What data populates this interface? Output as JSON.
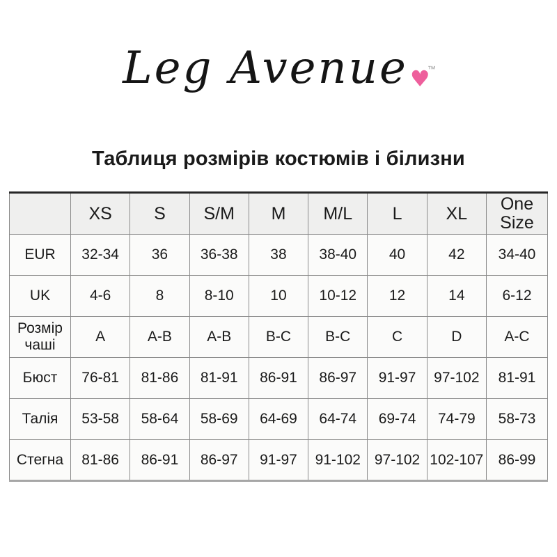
{
  "logo": {
    "text": "Leg Avenue",
    "trademark": "™",
    "heart": "♥"
  },
  "title": "Таблиця розмірів костюмів і білизни",
  "size_chart": {
    "type": "table",
    "columns": [
      "",
      "XS",
      "S",
      "S/M",
      "M",
      "M/L",
      "L",
      "XL",
      "One Size"
    ],
    "rows": [
      {
        "label": "EUR",
        "values": [
          "32-34",
          "36",
          "36-38",
          "38",
          "38-40",
          "40",
          "42",
          "34-40"
        ]
      },
      {
        "label": "UK",
        "values": [
          "4-6",
          "8",
          "8-10",
          "10",
          "10-12",
          "12",
          "14",
          "6-12"
        ]
      },
      {
        "label": "Розмір чаші",
        "values": [
          "A",
          "A-B",
          "A-B",
          "B-C",
          "B-C",
          "C",
          "D",
          "A-C"
        ]
      },
      {
        "label": "Бюст",
        "values": [
          "76-81",
          "81-86",
          "81-91",
          "86-91",
          "86-97",
          "91-97",
          "97-102",
          "81-91"
        ]
      },
      {
        "label": "Талія",
        "values": [
          "53-58",
          "58-64",
          "58-69",
          "64-69",
          "64-74",
          "69-74",
          "74-79",
          "58-73"
        ]
      },
      {
        "label": "Стегна",
        "values": [
          "81-86",
          "86-91",
          "86-97",
          "91-97",
          "91-102",
          "97-102",
          "102-107",
          "86-99"
        ]
      }
    ]
  },
  "colors": {
    "heart_pink": "#ee5f9c",
    "header_background": "#efefee",
    "row_background": "#fbfbfa",
    "border_gray": "#8a8a8a",
    "text": "#1a1a1a",
    "trademark_gray": "#9a9a9a"
  }
}
